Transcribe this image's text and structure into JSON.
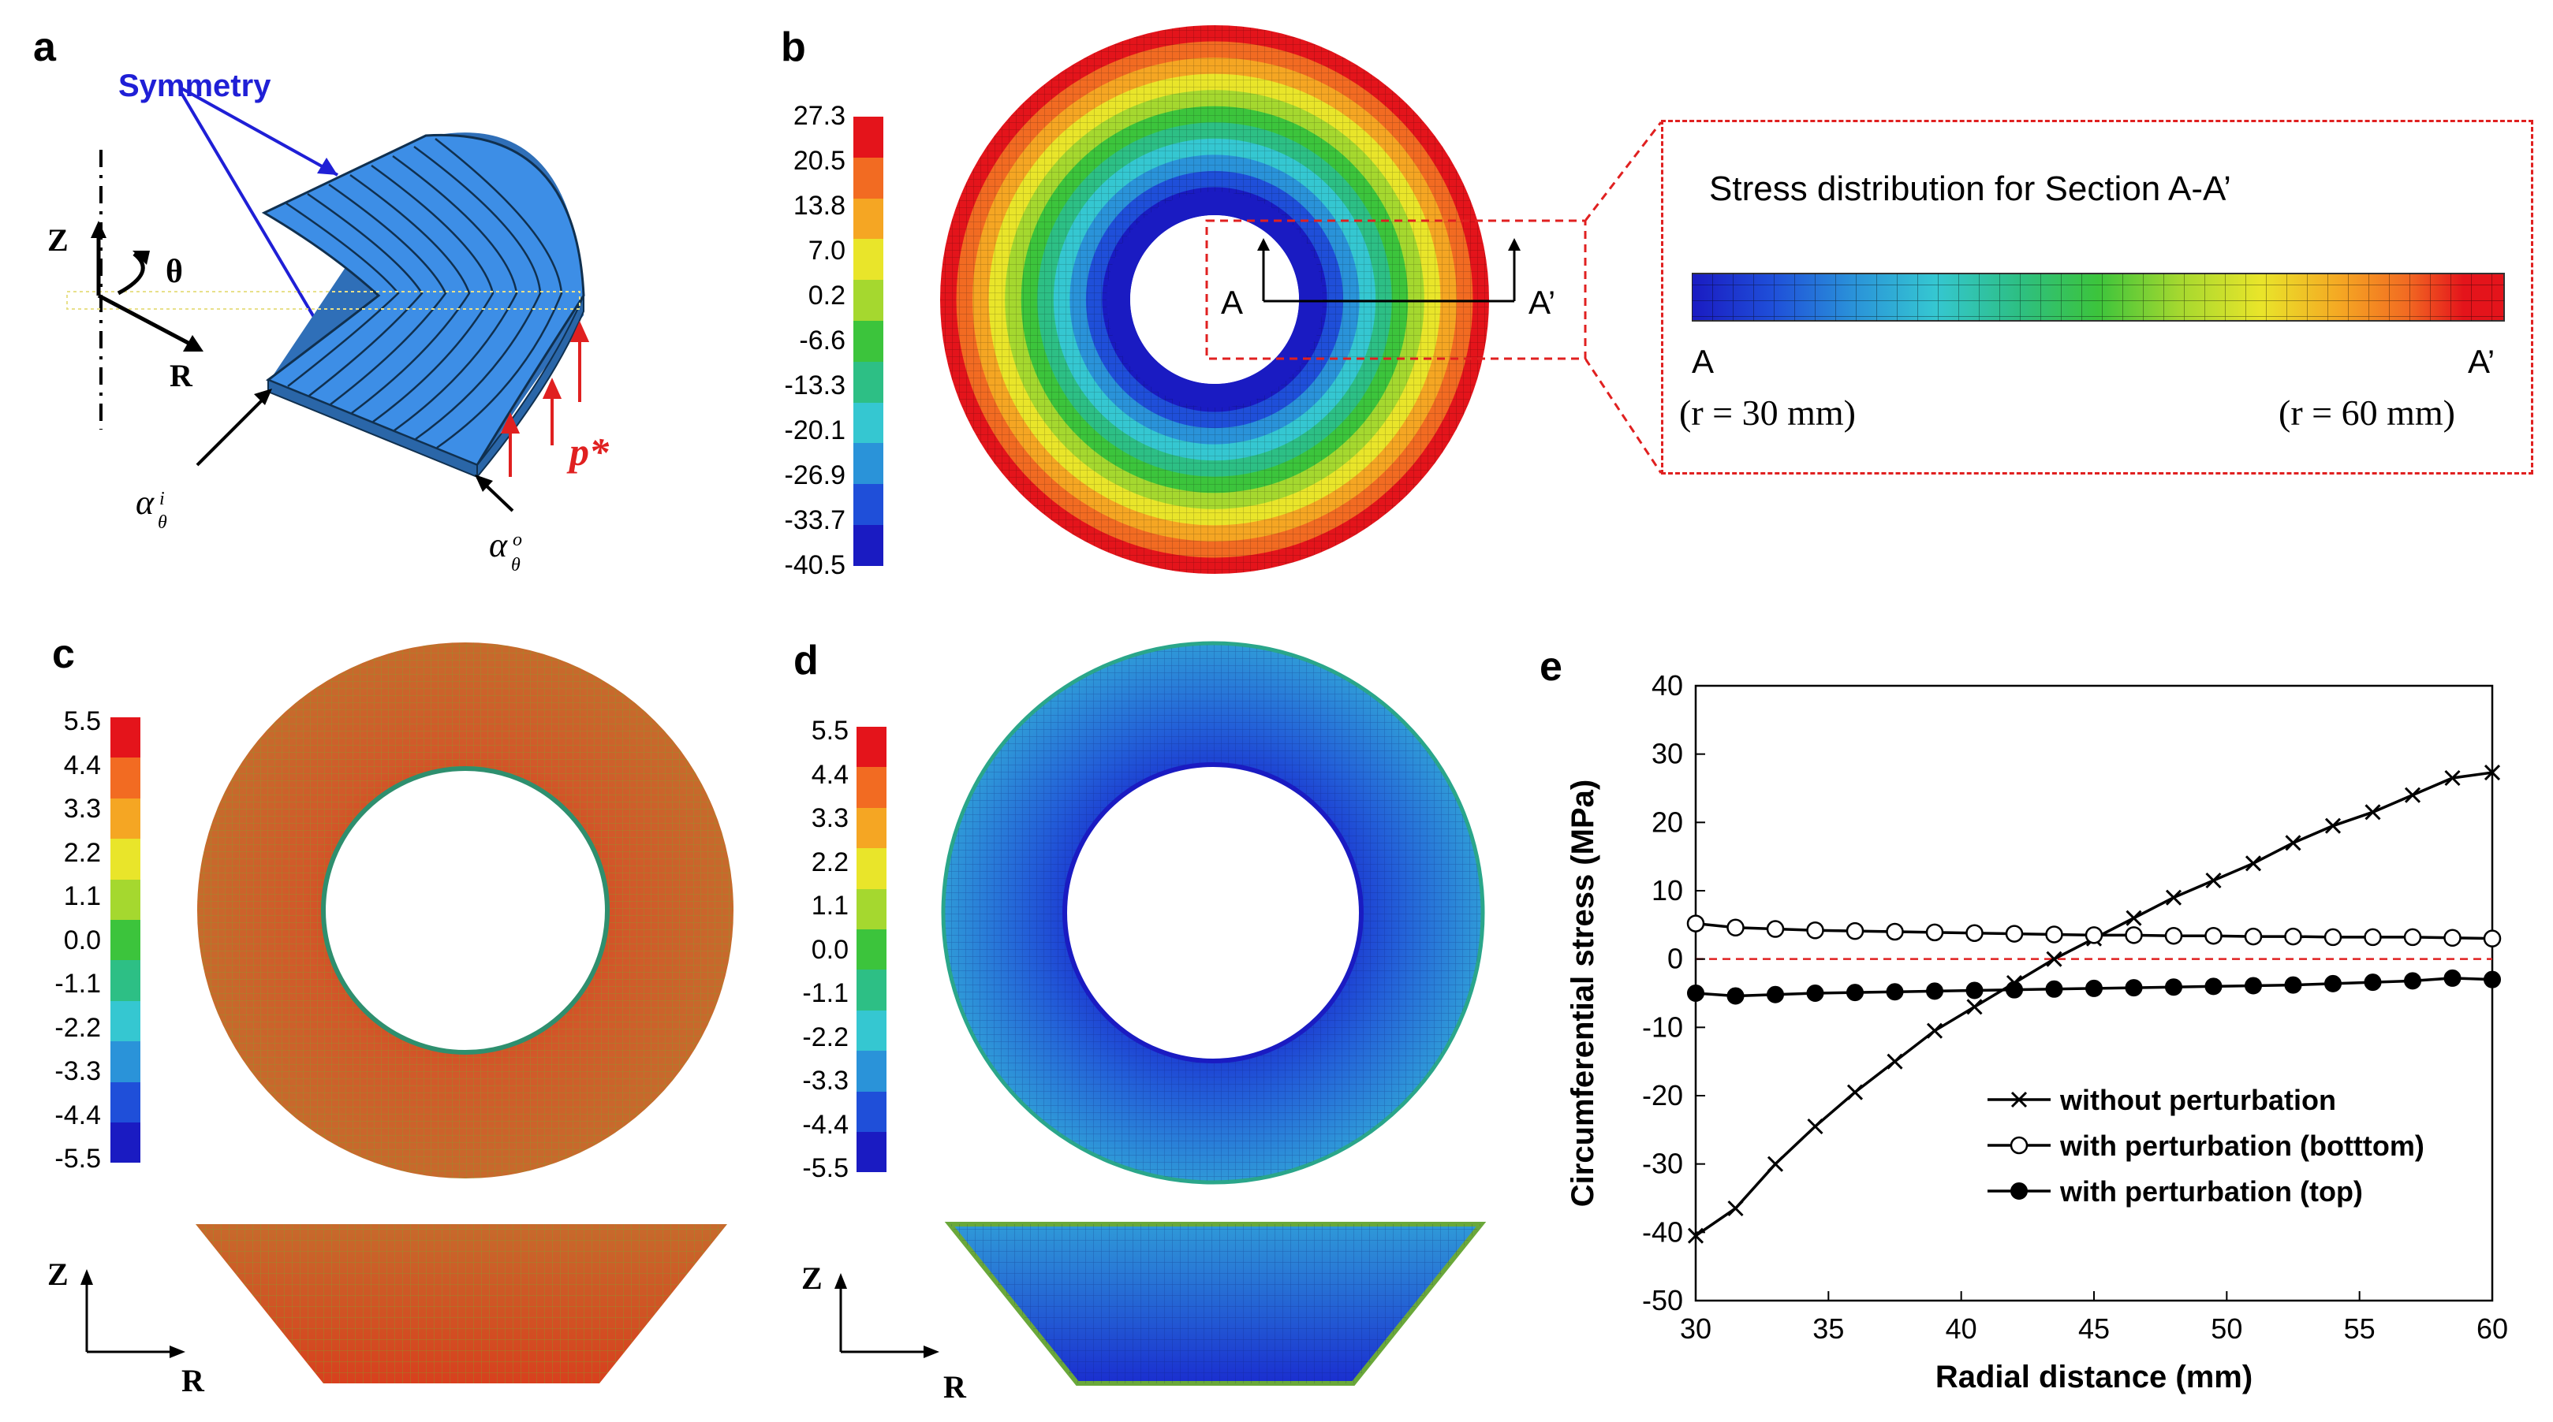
{
  "panels": {
    "a": {
      "letter": "a",
      "symmetry_label": "Symmetry",
      "axis_z": "Z",
      "axis_theta": "θ",
      "axis_r": "R",
      "alpha_symbol": "α",
      "alpha_sub": "θ",
      "alpha_inner_sup": "i",
      "alpha_outer_sup": "o",
      "pressure_label": "p*",
      "colors": {
        "body": "#3d8ee6",
        "symmetry": "#1f1fd6",
        "pressure": "#e02020"
      }
    },
    "b": {
      "letter": "b",
      "legend_labels": [
        "27.3",
        "20.5",
        "13.8",
        "7.0",
        "0.2",
        "-6.6",
        "-13.3",
        "-20.1",
        "-26.9",
        "-33.7",
        "-40.5"
      ],
      "section_a": "A",
      "section_a_prime": "A’",
      "inset_title": "Stress distribution for Section A-A’",
      "inset_left_label": "A",
      "inset_right_label": "A’",
      "inset_left_radius": "(r = 30 mm)",
      "inset_right_radius": "(r = 60 mm)"
    },
    "c": {
      "letter": "c",
      "legend_labels": [
        "5.5",
        "4.4",
        "3.3",
        "2.2",
        "1.1",
        "0.0",
        "-1.1",
        "-2.2",
        "-3.3",
        "-4.4",
        "-5.5"
      ],
      "axis_z": "Z",
      "axis_r": "R"
    },
    "d": {
      "letter": "d",
      "legend_labels": [
        "5.5",
        "4.4",
        "3.3",
        "2.2",
        "1.1",
        "0.0",
        "-1.1",
        "-2.2",
        "-3.3",
        "-4.4",
        "-5.5"
      ],
      "axis_z": "Z",
      "axis_r": "R"
    },
    "e": {
      "letter": "e"
    }
  },
  "colormap": [
    "#e4141b",
    "#f26b22",
    "#f5a623",
    "#e9e52a",
    "#a5d82f",
    "#3cc43c",
    "#2dbf85",
    "#35c7d1",
    "#2a93d9",
    "#1f4fd9",
    "#1a1bc2"
  ],
  "chart_data": {
    "type": "line",
    "title": "",
    "xlabel": "Radial distance (mm)",
    "ylabel": "Circumferential stress (MPa)",
    "xlim": [
      30,
      60
    ],
    "ylim": [
      -50,
      40
    ],
    "xticks": [
      30,
      35,
      40,
      45,
      50,
      55,
      60
    ],
    "yticks": [
      -50,
      -40,
      -30,
      -20,
      -10,
      0,
      10,
      20,
      30,
      40
    ],
    "reference_line": {
      "y": 0,
      "style": "dashed",
      "color": "#e02020"
    },
    "legend_position": "bottom-right",
    "series": [
      {
        "name": "without perturbation",
        "marker": "x",
        "x": [
          30,
          31.5,
          33,
          34.5,
          36,
          37.5,
          39,
          40.5,
          42,
          43.5,
          45,
          46.5,
          48,
          49.5,
          51,
          52.5,
          54,
          55.5,
          57,
          58.5,
          60
        ],
        "y": [
          -40.5,
          -36.5,
          -30,
          -24.5,
          -19.5,
          -15,
          -10.5,
          -7,
          -3.5,
          0,
          3,
          6,
          9,
          11.5,
          14,
          17,
          19.5,
          21.5,
          24,
          26.5,
          27.3
        ]
      },
      {
        "name": "with perturbation (botttom)",
        "marker": "open-circle",
        "x": [
          30,
          31.5,
          33,
          34.5,
          36,
          37.5,
          39,
          40.5,
          42,
          43.5,
          45,
          46.5,
          48,
          49.5,
          51,
          52.5,
          54,
          55.5,
          57,
          58.5,
          60
        ],
        "y": [
          5.2,
          4.6,
          4.4,
          4.2,
          4.1,
          4.0,
          3.9,
          3.8,
          3.7,
          3.6,
          3.5,
          3.5,
          3.4,
          3.4,
          3.3,
          3.3,
          3.2,
          3.2,
          3.2,
          3.1,
          3.0
        ]
      },
      {
        "name": "with perturbation (top)",
        "marker": "filled-circle",
        "x": [
          30,
          31.5,
          33,
          34.5,
          36,
          37.5,
          39,
          40.5,
          42,
          43.5,
          45,
          46.5,
          48,
          49.5,
          51,
          52.5,
          54,
          55.5,
          57,
          58.5,
          60
        ],
        "y": [
          -5.0,
          -5.4,
          -5.2,
          -5.0,
          -4.9,
          -4.8,
          -4.7,
          -4.6,
          -4.5,
          -4.4,
          -4.3,
          -4.2,
          -4.1,
          -4.0,
          -3.9,
          -3.8,
          -3.6,
          -3.4,
          -3.2,
          -2.8,
          -3.0
        ]
      }
    ]
  }
}
